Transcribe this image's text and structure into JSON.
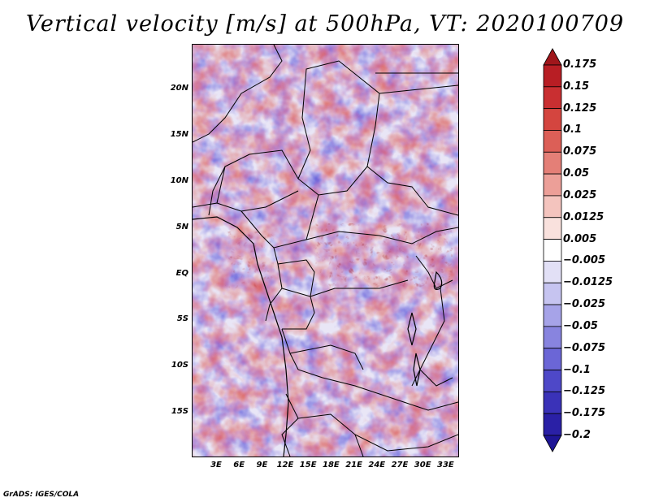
{
  "title": "Vertical velocity [m/s] at 500hPa, VT: 2020100709",
  "footer": "GrADS: IGES/COLA",
  "y_axis_labels": [
    "20N",
    "15N",
    "10N",
    "5N",
    "EQ",
    "5S",
    "10S",
    "15S"
  ],
  "x_axis_labels": [
    "3E",
    "6E",
    "9E",
    "12E",
    "15E",
    "18E",
    "21E",
    "24E",
    "27E",
    "30E",
    "33E"
  ],
  "colorbar": {
    "labels": [
      "0.175",
      "0.15",
      "0.125",
      "0.1",
      "0.075",
      "0.05",
      "0.025",
      "0.0125",
      "0.005",
      "−0.005",
      "−0.0125",
      "−0.025",
      "−0.05",
      "−0.075",
      "−0.1",
      "−0.125",
      "−0.175",
      "−0.2"
    ],
    "colors": [
      "#a0161b",
      "#b81e24",
      "#c92f31",
      "#d4453f",
      "#dc5f57",
      "#e47f77",
      "#ec9f98",
      "#f4c4be",
      "#f9e1dd",
      "#ffffff",
      "#e2e0f6",
      "#c6c4f0",
      "#a6a3e8",
      "#8884df",
      "#6b66d6",
      "#4e48c8",
      "#3a32b8",
      "#2a20a6",
      "#1e1596"
    ]
  }
}
